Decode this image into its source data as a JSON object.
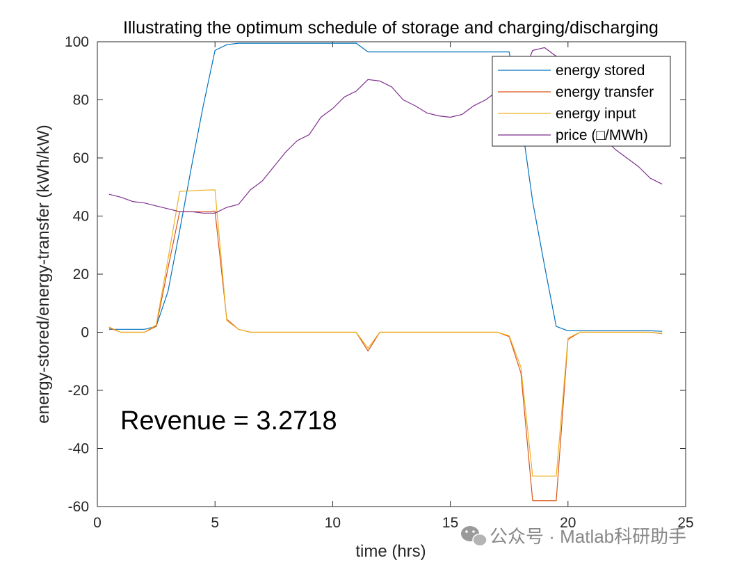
{
  "chart_data": {
    "type": "line",
    "title": "Illustrating the optimum schedule of storage and charging/discharging",
    "xlabel": "time (hrs)",
    "ylabel": "energy-stored/energy-transfer (kWh/kW)",
    "xlim": [
      0,
      25
    ],
    "ylim": [
      -60,
      100
    ],
    "xticks": [
      0,
      5,
      10,
      15,
      20,
      25
    ],
    "yticks": [
      -60,
      -40,
      -20,
      0,
      20,
      40,
      60,
      80,
      100
    ],
    "grid": false,
    "legend_position": "top-right",
    "annotation": "Revenue = 3.2718",
    "x": [
      0.5,
      1,
      1.5,
      2,
      2.5,
      3,
      3.5,
      4,
      4.5,
      5,
      5.5,
      6,
      6.5,
      7,
      7.5,
      8,
      8.5,
      9,
      9.5,
      10,
      10.5,
      11,
      11.5,
      12,
      12.5,
      13,
      13.5,
      14,
      14.5,
      15,
      15.5,
      16,
      16.5,
      17,
      17.5,
      18,
      18.5,
      19,
      19.5,
      20,
      20.5,
      21,
      21.5,
      22,
      22.5,
      23,
      23.5,
      24
    ],
    "series": [
      {
        "name": "energy stored",
        "color": "#0072BD",
        "values": [
          1,
          1,
          1,
          1,
          2,
          14,
          35,
          57,
          78,
          97,
          99,
          99.5,
          99.5,
          99.5,
          99.5,
          99.5,
          99.5,
          99.5,
          99.5,
          99.5,
          99.5,
          99.5,
          96.5,
          96.5,
          96.5,
          96.5,
          96.5,
          96.5,
          96.5,
          96.5,
          96.5,
          96.5,
          96.5,
          96.5,
          96.5,
          74,
          45,
          23,
          2,
          0.5,
          0.5,
          0.5,
          0.5,
          0.5,
          0.5,
          0.5,
          0.5,
          0.3
        ]
      },
      {
        "name": "energy transfer",
        "color": "#D95319",
        "values": [
          1.5,
          0,
          0,
          0,
          2,
          22,
          41.5,
          41.5,
          41.5,
          41.7,
          4.5,
          1,
          0,
          0,
          0,
          0,
          0,
          0,
          0,
          0,
          0,
          0,
          -6.5,
          0,
          0,
          0,
          0,
          0,
          0,
          0,
          0,
          0,
          0,
          0,
          -1.5,
          -14,
          -58,
          -58,
          -58,
          -2.5,
          0,
          0,
          0,
          0,
          0,
          0,
          0,
          -0.5
        ]
      },
      {
        "name": "energy input",
        "color": "#EDB120",
        "values": [
          1.8,
          0,
          0,
          0,
          2.5,
          25,
          48.5,
          48.7,
          48.9,
          49,
          4,
          1,
          0,
          0,
          0,
          0,
          0,
          0,
          0,
          0,
          0,
          0,
          -5.5,
          0,
          0,
          0,
          0,
          0,
          0,
          0,
          0,
          0,
          0,
          0,
          -1.2,
          -12,
          -49.5,
          -49.5,
          -49.5,
          -2,
          0,
          0,
          0,
          0,
          0,
          0,
          0,
          -0.4
        ]
      },
      {
        "name": "price (□/MWh)",
        "color": "#7E2F8E",
        "values": [
          47.5,
          46.5,
          45,
          44.5,
          43.5,
          42.5,
          41.5,
          41.5,
          41,
          41,
          43,
          44,
          49,
          52,
          57,
          62,
          66,
          68,
          74,
          77,
          81,
          83,
          87,
          86.5,
          84.5,
          80,
          78,
          75.5,
          74.5,
          74,
          75,
          78,
          80,
          83,
          85,
          87,
          97,
          98,
          95,
          86,
          76,
          71,
          67,
          63,
          60,
          57,
          53,
          51
        ]
      }
    ]
  },
  "watermark": {
    "icon": "wechat-icon",
    "text": "公众号 · Matlab科研助手"
  }
}
